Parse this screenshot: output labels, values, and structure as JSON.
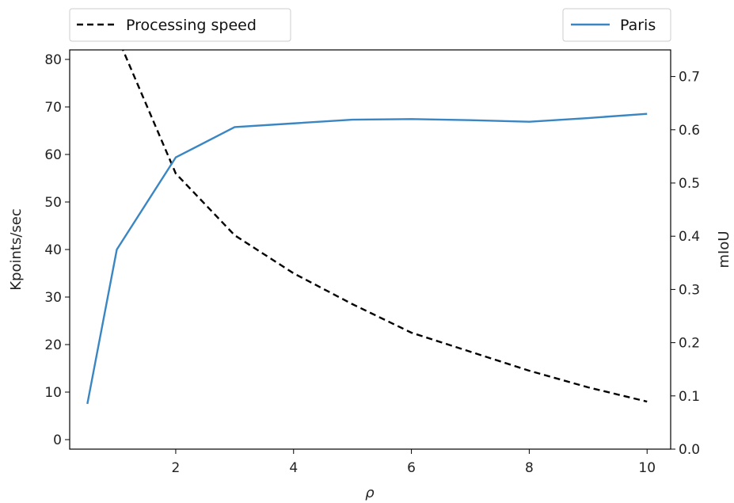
{
  "chart_data": {
    "type": "line",
    "xlabel": "ρ",
    "ylabel_left": "Kpoints/sec",
    "ylabel_right": "mIoU",
    "x_ticks": [
      2,
      4,
      6,
      8,
      10
    ],
    "y_left_ticks": [
      0,
      10,
      20,
      30,
      40,
      50,
      60,
      70,
      80
    ],
    "y_right_ticks": [
      "0.0",
      "0.1",
      "0.2",
      "0.3",
      "0.4",
      "0.5",
      "0.6",
      "0.7"
    ],
    "x_range": [
      0.2,
      10.4
    ],
    "y_left_range": [
      -2,
      82
    ],
    "y_right_range": [
      0.0,
      0.75
    ],
    "grid": false,
    "series": [
      {
        "name": "Processing speed",
        "axis": "left",
        "style": "dashed",
        "color": "#000000",
        "legend_position": "top-left",
        "x": [
          1,
          2,
          3,
          4,
          5,
          6,
          7,
          8,
          9,
          10
        ],
        "y": [
          85,
          56,
          43,
          35,
          28.5,
          22.5,
          18.5,
          14.5,
          11,
          8
        ]
      },
      {
        "name": "Paris",
        "axis": "right",
        "style": "solid",
        "color": "#3a86c3",
        "legend_position": "top-right",
        "x": [
          0.5,
          1,
          2,
          3,
          4,
          5,
          6,
          7,
          8,
          9,
          10
        ],
        "y": [
          0.085,
          0.375,
          0.548,
          0.605,
          0.612,
          0.619,
          0.62,
          0.618,
          0.615,
          0.622,
          0.63
        ]
      }
    ]
  }
}
